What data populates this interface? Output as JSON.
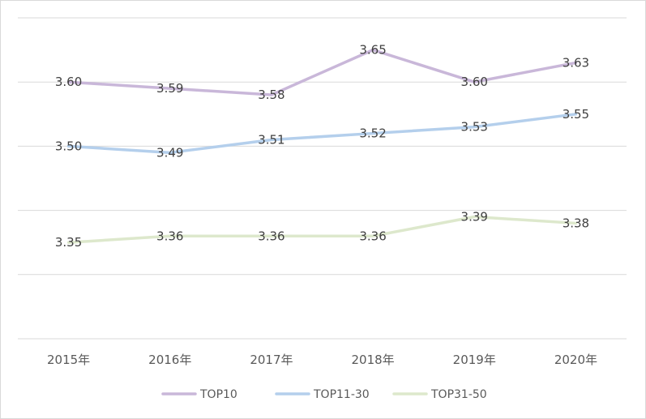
{
  "chart_data": {
    "type": "line",
    "title": "",
    "xlabel": "",
    "ylabel": "",
    "categories": [
      "2015年",
      "2016年",
      "2017年",
      "2018年",
      "2019年",
      "2020年"
    ],
    "ylim": [
      3.2,
      3.7
    ],
    "grid": true,
    "legend_position": "bottom",
    "series": [
      {
        "name": "TOP10",
        "color": "#c9b7d9",
        "values": [
          3.6,
          3.59,
          3.58,
          3.65,
          3.6,
          3.63
        ],
        "labels": [
          "3.60",
          "3.59",
          "3.58",
          "3.65",
          "3.60",
          "3.63"
        ]
      },
      {
        "name": "TOP11-30",
        "color": "#b4cfec",
        "values": [
          3.5,
          3.49,
          3.51,
          3.52,
          3.53,
          3.55
        ],
        "labels": [
          "3.50",
          "3.49",
          "3.51",
          "3.52",
          "3.53",
          "3.55"
        ]
      },
      {
        "name": "TOP31-50",
        "color": "#dde8cc",
        "values": [
          3.35,
          3.36,
          3.36,
          3.36,
          3.39,
          3.38
        ],
        "labels": [
          "3.35",
          "3.36",
          "3.36",
          "3.36",
          "3.39",
          "3.38"
        ]
      }
    ]
  }
}
